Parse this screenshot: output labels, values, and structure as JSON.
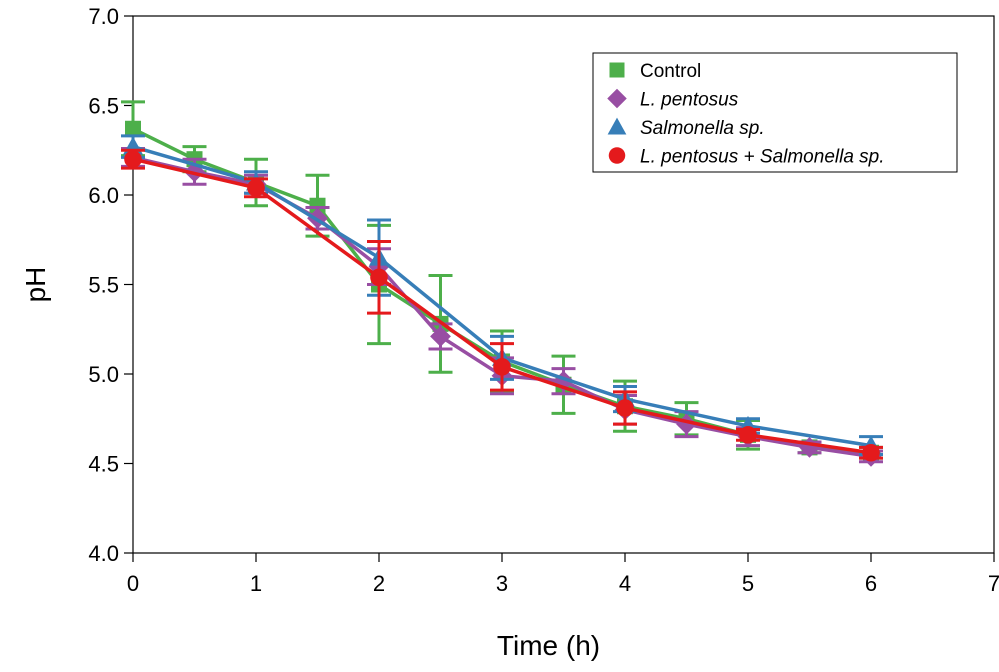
{
  "chart_data": {
    "type": "line",
    "title": "",
    "xlabel": "Time (h)",
    "ylabel": "pH",
    "xlim": [
      0,
      7
    ],
    "ylim": [
      4.0,
      7.0
    ],
    "xticks": [
      "0",
      "1",
      "2",
      "3",
      "4",
      "5",
      "6",
      "7"
    ],
    "yticks": [
      "4.0",
      "4.5",
      "5.0",
      "5.5",
      "6.0",
      "6.5",
      "7.0"
    ],
    "grid": false,
    "legend_position": "top-right",
    "series": [
      {
        "name": "Control",
        "color": "#4daf4a",
        "marker": "square",
        "x": [
          0,
          0.5,
          1,
          1.5,
          2,
          2.5,
          3,
          3.5,
          4,
          4.5,
          5,
          5.5,
          6
        ],
        "y": [
          6.37,
          6.2,
          6.07,
          5.94,
          5.5,
          5.28,
          5.07,
          4.94,
          4.82,
          4.75,
          4.66,
          4.59,
          4.56
        ],
        "err": [
          0.15,
          0.07,
          0.13,
          0.17,
          0.33,
          0.27,
          0.17,
          0.16,
          0.14,
          0.09,
          0.08,
          0.03,
          0.03
        ]
      },
      {
        "name": "L. pentosus",
        "color": "#984ea3",
        "marker": "diamond",
        "x": [
          0,
          0.5,
          1,
          1.5,
          2,
          2.5,
          3,
          3.5,
          4,
          4.5,
          5,
          5.5,
          6
        ],
        "y": [
          6.21,
          6.13,
          6.06,
          5.87,
          5.6,
          5.21,
          4.99,
          4.96,
          4.8,
          4.72,
          4.65,
          4.59,
          4.54
        ],
        "err": [
          0.05,
          0.07,
          0.05,
          0.06,
          0.1,
          0.07,
          0.1,
          0.07,
          0.08,
          0.07,
          0.05,
          0.03,
          0.03
        ]
      },
      {
        "name": "Salmonella sp.",
        "color": "#377eb8",
        "marker": "triangle",
        "x": [
          0,
          1,
          2,
          3,
          4,
          5,
          6
        ],
        "y": [
          6.27,
          6.07,
          5.65,
          5.09,
          4.86,
          4.71,
          4.6
        ],
        "err": [
          0.06,
          0.06,
          0.21,
          0.12,
          0.07,
          0.04,
          0.05
        ]
      },
      {
        "name": "L. pentosus + Salmonella sp.",
        "color": "#e41a1c",
        "marker": "circle",
        "x": [
          0,
          1,
          2,
          3,
          4,
          5,
          6
        ],
        "y": [
          6.2,
          6.04,
          5.54,
          5.04,
          4.81,
          4.66,
          4.56
        ],
        "err": [
          0.05,
          0.05,
          0.2,
          0.13,
          0.09,
          0.03,
          0.03
        ]
      }
    ]
  },
  "legend": {
    "items": [
      {
        "label": "Control",
        "italic": false
      },
      {
        "label": "L. pentosus",
        "italic": true
      },
      {
        "label": "Salmonella sp.",
        "italic": true
      },
      {
        "label": "L. pentosus + Salmonella sp.",
        "italic": true
      }
    ]
  }
}
